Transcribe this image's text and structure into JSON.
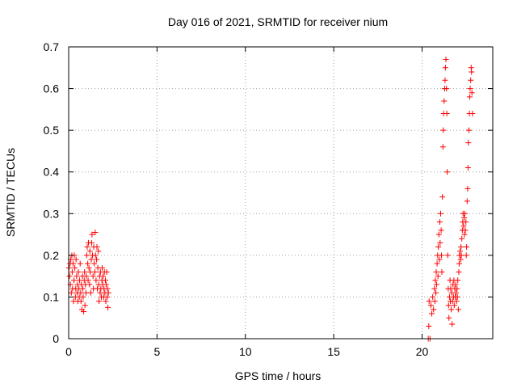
{
  "chart_data": {
    "type": "scatter",
    "title": "Day 016 of 2021, SRMTID for receiver nium",
    "xlabel": "GPS time / hours",
    "ylabel": "SRMTID / TECUs",
    "xlim": [
      0,
      24
    ],
    "ylim": [
      0,
      0.7
    ],
    "xticks": [
      0,
      5,
      10,
      15,
      20
    ],
    "xtick_labels": [
      "0",
      "5",
      "10",
      "15",
      "20"
    ],
    "yticks": [
      0,
      0.1,
      0.2,
      0.3,
      0.4,
      0.5,
      0.6,
      0.7
    ],
    "ytick_labels": [
      "0",
      "0.1",
      "0.2",
      "0.3",
      "0.4",
      "0.5",
      "0.6",
      "0.7"
    ],
    "grid": true,
    "legend": "none",
    "marker": "plus",
    "series": [
      {
        "name": "SRMTID",
        "color": "#ff0000",
        "points": [
          [
            0.02,
            0.17
          ],
          [
            0.05,
            0.15
          ],
          [
            0.08,
            0.18
          ],
          [
            0.1,
            0.13
          ],
          [
            0.12,
            0.19
          ],
          [
            0.15,
            0.11
          ],
          [
            0.18,
            0.2
          ],
          [
            0.2,
            0.16
          ],
          [
            0.22,
            0.12
          ],
          [
            0.25,
            0.18
          ],
          [
            0.28,
            0.09
          ],
          [
            0.3,
            0.14
          ],
          [
            0.32,
            0.2
          ],
          [
            0.35,
            0.17
          ],
          [
            0.38,
            0.1
          ],
          [
            0.4,
            0.12
          ],
          [
            0.42,
            0.19
          ],
          [
            0.45,
            0.15
          ],
          [
            0.48,
            0.11
          ],
          [
            0.5,
            0.13
          ],
          [
            0.52,
            0.09
          ],
          [
            0.55,
            0.16
          ],
          [
            0.58,
            0.12
          ],
          [
            0.6,
            0.1
          ],
          [
            0.62,
            0.14
          ],
          [
            0.65,
            0.18
          ],
          [
            0.68,
            0.11
          ],
          [
            0.7,
            0.09
          ],
          [
            0.72,
            0.13
          ],
          [
            0.75,
            0.07
          ],
          [
            0.78,
            0.15
          ],
          [
            0.8,
            0.12
          ],
          [
            0.82,
            0.1
          ],
          [
            0.85,
            0.065
          ],
          [
            0.88,
            0.14
          ],
          [
            0.9,
            0.16
          ],
          [
            0.92,
            0.08
          ],
          [
            0.95,
            0.13
          ],
          [
            0.98,
            0.11
          ],
          [
            1.0,
            0.15
          ],
          [
            1.02,
            0.2
          ],
          [
            1.05,
            0.22
          ],
          [
            1.08,
            0.18
          ],
          [
            1.1,
            0.14
          ],
          [
            1.12,
            0.23
          ],
          [
            1.15,
            0.17
          ],
          [
            1.18,
            0.13
          ],
          [
            1.2,
            0.21
          ],
          [
            1.22,
            0.16
          ],
          [
            1.25,
            0.11
          ],
          [
            1.28,
            0.19
          ],
          [
            1.3,
            0.23
          ],
          [
            1.32,
            0.25
          ],
          [
            1.35,
            0.2
          ],
          [
            1.38,
            0.15
          ],
          [
            1.4,
            0.12
          ],
          [
            1.42,
            0.22
          ],
          [
            1.45,
            0.18
          ],
          [
            1.48,
            0.16
          ],
          [
            1.5,
            0.255
          ],
          [
            1.52,
            0.2
          ],
          [
            1.55,
            0.14
          ],
          [
            1.58,
            0.19
          ],
          [
            1.6,
            0.22
          ],
          [
            1.62,
            0.12
          ],
          [
            1.65,
            0.17
          ],
          [
            1.68,
            0.21
          ],
          [
            1.7,
            0.13
          ],
          [
            1.72,
            0.09
          ],
          [
            1.75,
            0.15
          ],
          [
            1.78,
            0.11
          ],
          [
            1.8,
            0.16
          ],
          [
            1.82,
            0.12
          ],
          [
            1.85,
            0.1
          ],
          [
            1.88,
            0.14
          ],
          [
            1.9,
            0.17
          ],
          [
            1.92,
            0.13
          ],
          [
            1.95,
            0.15
          ],
          [
            1.98,
            0.1
          ],
          [
            2.0,
            0.12
          ],
          [
            2.02,
            0.16
          ],
          [
            2.05,
            0.11
          ],
          [
            2.08,
            0.14
          ],
          [
            2.1,
            0.09
          ],
          [
            2.12,
            0.13
          ],
          [
            2.15,
            0.16
          ],
          [
            2.18,
            0.1
          ],
          [
            2.2,
            0.12
          ],
          [
            2.22,
            0.075
          ],
          [
            2.25,
            0.11
          ],
          [
            20.35,
            0.0
          ],
          [
            20.38,
            0.03
          ],
          [
            20.4,
            0.09
          ],
          [
            20.45,
            0.0
          ],
          [
            20.5,
            0.08
          ],
          [
            20.55,
            0.06
          ],
          [
            20.6,
            0.1
          ],
          [
            20.65,
            0.07
          ],
          [
            20.7,
            0.12
          ],
          [
            20.72,
            0.09
          ],
          [
            20.75,
            0.14
          ],
          [
            20.78,
            0.11
          ],
          [
            20.8,
            0.16
          ],
          [
            20.82,
            0.13
          ],
          [
            20.85,
            0.18
          ],
          [
            20.88,
            0.2
          ],
          [
            20.9,
            0.15
          ],
          [
            20.92,
            0.22
          ],
          [
            20.95,
            0.25
          ],
          [
            20.98,
            0.19
          ],
          [
            21.0,
            0.28
          ],
          [
            21.02,
            0.23
          ],
          [
            21.05,
            0.3
          ],
          [
            21.08,
            0.26
          ],
          [
            21.1,
            0.2
          ],
          [
            21.12,
            0.16
          ],
          [
            21.15,
            0.34
          ],
          [
            21.18,
            0.46
          ],
          [
            21.2,
            0.5
          ],
          [
            21.22,
            0.54
          ],
          [
            21.25,
            0.57
          ],
          [
            21.28,
            0.6
          ],
          [
            21.3,
            0.62
          ],
          [
            21.32,
            0.65
          ],
          [
            21.35,
            0.67
          ],
          [
            21.38,
            0.6
          ],
          [
            21.4,
            0.54
          ],
          [
            21.42,
            0.4
          ],
          [
            21.45,
            0.2
          ],
          [
            21.48,
            0.12
          ],
          [
            21.5,
            0.08
          ],
          [
            21.52,
            0.05
          ],
          [
            21.55,
            0.1
          ],
          [
            21.58,
            0.14
          ],
          [
            21.6,
            0.09
          ],
          [
            21.62,
            0.12
          ],
          [
            21.65,
            0.07
          ],
          [
            21.68,
            0.11
          ],
          [
            21.7,
            0.035
          ],
          [
            21.72,
            0.09
          ],
          [
            21.75,
            0.13
          ],
          [
            21.78,
            0.1
          ],
          [
            21.8,
            0.14
          ],
          [
            21.82,
            0.08
          ],
          [
            21.85,
            0.12
          ],
          [
            21.88,
            0.1
          ],
          [
            21.9,
            0.13
          ],
          [
            21.92,
            0.11
          ],
          [
            21.95,
            0.09
          ],
          [
            21.98,
            0.12
          ],
          [
            22.0,
            0.1
          ],
          [
            22.02,
            0.14
          ],
          [
            22.05,
            0.07
          ],
          [
            22.08,
            0.16
          ],
          [
            22.1,
            0.18
          ],
          [
            22.12,
            0.2
          ],
          [
            22.15,
            0.21
          ],
          [
            22.18,
            0.19
          ],
          [
            22.2,
            0.22
          ],
          [
            22.22,
            0.2
          ],
          [
            22.25,
            0.24
          ],
          [
            22.28,
            0.26
          ],
          [
            22.3,
            0.28
          ],
          [
            22.32,
            0.3
          ],
          [
            22.35,
            0.27
          ],
          [
            22.38,
            0.29
          ],
          [
            22.4,
            0.25
          ],
          [
            22.42,
            0.3
          ],
          [
            22.45,
            0.26
          ],
          [
            22.48,
            0.28
          ],
          [
            22.5,
            0.2
          ],
          [
            22.52,
            0.22
          ],
          [
            22.55,
            0.33
          ],
          [
            22.58,
            0.36
          ],
          [
            22.6,
            0.41
          ],
          [
            22.62,
            0.47
          ],
          [
            22.65,
            0.5
          ],
          [
            22.68,
            0.54
          ],
          [
            22.7,
            0.58
          ],
          [
            22.72,
            0.6
          ],
          [
            22.75,
            0.62
          ],
          [
            22.78,
            0.65
          ],
          [
            22.8,
            0.64
          ],
          [
            22.82,
            0.59
          ],
          [
            22.85,
            0.54
          ]
        ]
      }
    ]
  }
}
